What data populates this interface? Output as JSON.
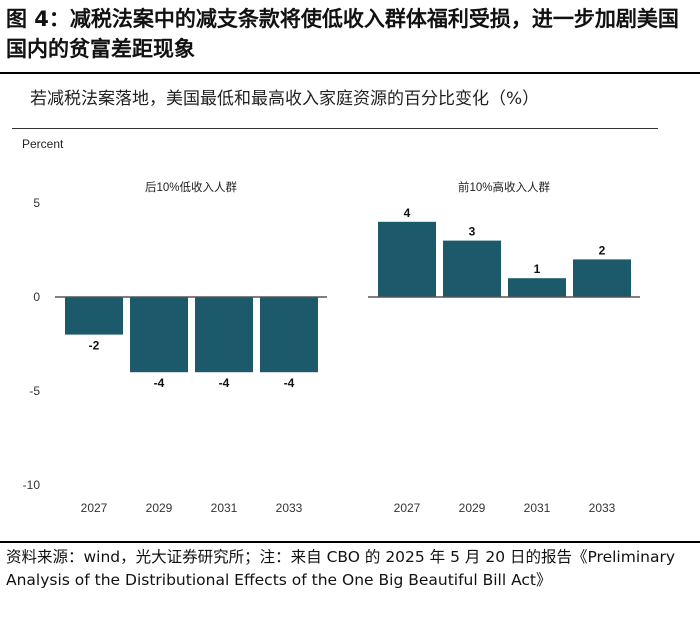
{
  "figure": {
    "title": "图 4：减税法案中的减支条款将使低收入群体福利受损，进一步加剧美国国内的贫富差距现象",
    "source": "资料来源：wind，光大证券研究所；注：来自 CBO 的 2025 年 5 月 20 日的报告《Preliminary Analysis of the Distributional Effects of the One Big Beautiful Bill Act》"
  },
  "chart_data": {
    "type": "bar",
    "title": "若减税法案落地，美国最低和最高收入家庭资源的百分比变化（%）",
    "ylabel": "Percent",
    "ylim": [
      -10,
      5
    ],
    "yticks": [
      5,
      0,
      -5,
      -10
    ],
    "grid": false,
    "bar_color": "#1c5a6b",
    "panels": [
      {
        "name": "后10%低收入人群",
        "categories": [
          "2027",
          "2029",
          "2031",
          "2033"
        ],
        "values": [
          -2,
          -4,
          -4,
          -4
        ]
      },
      {
        "name": "前10%高收入人群",
        "categories": [
          "2027",
          "2029",
          "2031",
          "2033"
        ],
        "values": [
          4,
          3,
          1,
          2
        ]
      }
    ]
  }
}
